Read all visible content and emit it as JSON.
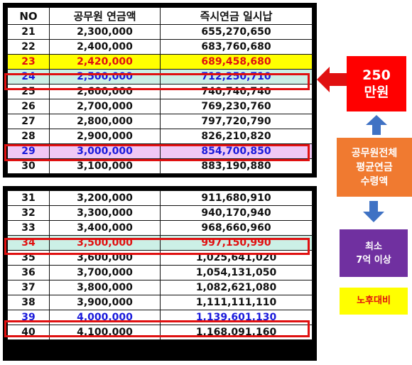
{
  "table_top": {
    "headers": [
      "NO",
      "공무원 연금액",
      "즉시연금 일시납"
    ],
    "rows": [
      {
        "no": "21",
        "amount": "2,300,000",
        "lump": "655,270,650"
      },
      {
        "no": "22",
        "amount": "2,400,000",
        "lump": "683,760,680"
      },
      {
        "no": "23",
        "amount": "2,420,000",
        "lump": "689,458,680"
      },
      {
        "no": "24",
        "amount": "2,500,000",
        "lump": "712,250,710"
      },
      {
        "no": "25",
        "amount": "2,600,000",
        "lump": "740,740,740"
      },
      {
        "no": "26",
        "amount": "2,700,000",
        "lump": "769,230,760"
      },
      {
        "no": "27",
        "amount": "2,800,000",
        "lump": "797,720,790"
      },
      {
        "no": "28",
        "amount": "2,900,000",
        "lump": "826,210,820"
      },
      {
        "no": "29",
        "amount": "3,000,000",
        "lump": "854,700,850"
      },
      {
        "no": "30",
        "amount": "3,100,000",
        "lump": "883,190,880"
      }
    ]
  },
  "table_bottom": {
    "rows": [
      {
        "no": "31",
        "amount": "3,200,000",
        "lump": "911,680,910"
      },
      {
        "no": "32",
        "amount": "3,300,000",
        "lump": "940,170,940"
      },
      {
        "no": "33",
        "amount": "3,400,000",
        "lump": "968,660,960"
      },
      {
        "no": "34",
        "amount": "3,500,000",
        "lump": "997,150,990"
      },
      {
        "no": "35",
        "amount": "3,600,000",
        "lump": "1,025,641,020"
      },
      {
        "no": "36",
        "amount": "3,700,000",
        "lump": "1,054,131,050"
      },
      {
        "no": "37",
        "amount": "3,800,000",
        "lump": "1,082,621,080"
      },
      {
        "no": "38",
        "amount": "3,900,000",
        "lump": "1,111,111,110"
      },
      {
        "no": "39",
        "amount": "4,000,000",
        "lump": "1,139,601,130"
      },
      {
        "no": "40",
        "amount": "4,100,000",
        "lump": "1,168,091,160"
      }
    ]
  },
  "callouts": {
    "red": {
      "line1": "250",
      "line2": "만원"
    },
    "orange": {
      "line1": "공무원전체",
      "line2": "평균연금",
      "line3": "수령액"
    },
    "purple": {
      "line1": "최소",
      "line2": "7억 이상"
    },
    "yellow": {
      "text": "노후대비"
    }
  },
  "colors": {
    "highlight_yellow": "#ffff00",
    "highlight_mint": "#ccf0e6",
    "highlight_violet": "#f0c8f5",
    "text_red": "#e01010",
    "text_blue": "#1a1adb",
    "callout_red": "#ff0000",
    "callout_orange": "#f07a30",
    "callout_purple": "#7030a0",
    "arrow_blue": "#3f72c4"
  }
}
